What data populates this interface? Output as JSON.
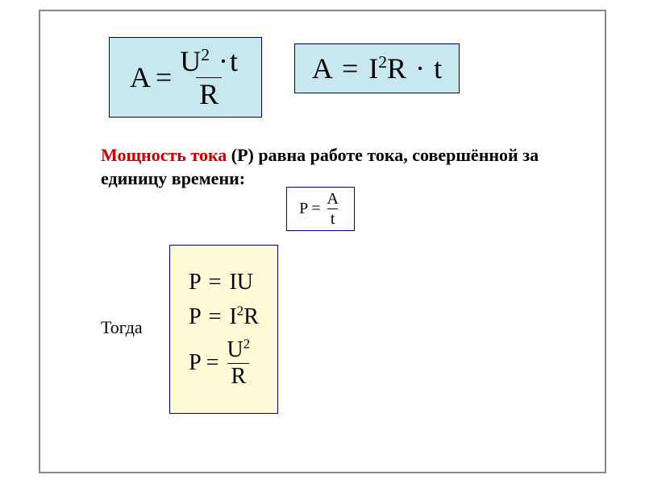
{
  "formula1": {
    "lhs": "A",
    "eq": "=",
    "num_base": "U",
    "num_sup": "2",
    "num_dot": "·",
    "num_t": "t",
    "den": "R",
    "bg": "#c7e8ee",
    "border": "#000080",
    "fontsize": 36
  },
  "formula2": {
    "lhs": "A",
    "eq": "=",
    "i": "I",
    "sup": "2",
    "r": "R",
    "dot": "·",
    "t": "t",
    "bg": "#c7e8ee",
    "border": "#000080",
    "fontsize": 36
  },
  "definition": {
    "red_part": "Мощность тока",
    "black_part": " (P) равна работе тока, совершённой за единицу времени:",
    "red_color": "#cc0000",
    "black_color": "#000000",
    "fontsize": 22
  },
  "formula3": {
    "lhs": "P",
    "eq": "=",
    "num": "A",
    "den": "t",
    "bg": "#ffffff",
    "border": "#000080",
    "fontsize": 20
  },
  "togda_label": "Тогда",
  "formula4": {
    "line1": {
      "lhs": "P",
      "eq": "=",
      "rhs": "IU"
    },
    "line2": {
      "lhs": "P",
      "eq": "=",
      "i": "I",
      "sup": "2",
      "r": "R"
    },
    "line3": {
      "lhs": "P",
      "eq": "=",
      "num_base": "U",
      "num_sup": "2",
      "den": "R"
    },
    "bg": "#fffbd6",
    "border": "#000080",
    "fontsize": 28
  }
}
